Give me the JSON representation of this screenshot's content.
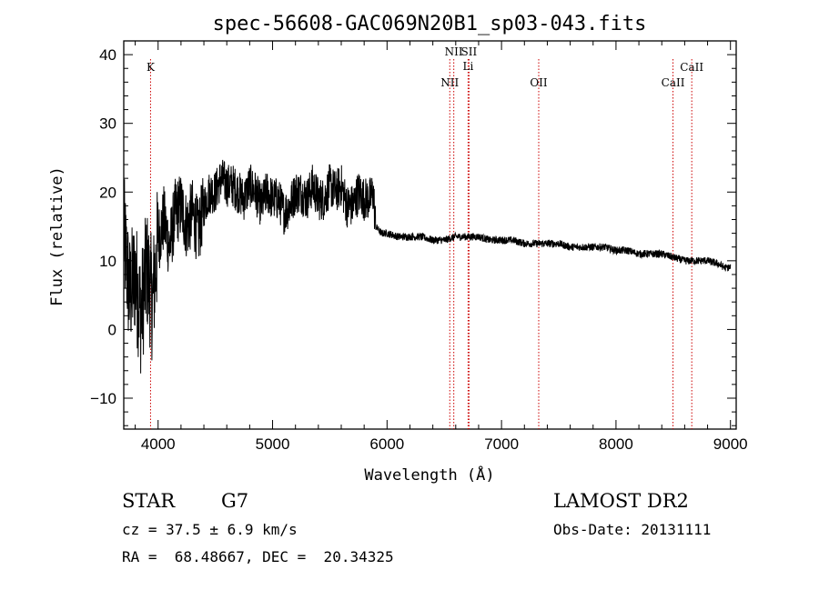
{
  "chart_data": {
    "type": "line",
    "title": "spec-56608-GAC069N20B1_sp03-043.fits",
    "xlabel": "Wavelength (Å)",
    "ylabel": "Flux (relative)",
    "xlim": [
      3700,
      9050
    ],
    "ylim": [
      -14.5,
      42
    ],
    "xticks": [
      4000,
      5000,
      6000,
      7000,
      8000,
      9000
    ],
    "yticks": [
      -10,
      0,
      10,
      20,
      30,
      40
    ],
    "grid": false,
    "line_color": "#000000",
    "marker_color": "#cc0000",
    "spectrum": {
      "x": [
        3700,
        3750,
        3800,
        3850,
        3900,
        3950,
        4000,
        4050,
        4100,
        4150,
        4200,
        4250,
        4300,
        4350,
        4400,
        4450,
        4500,
        4550,
        4600,
        4650,
        4700,
        4750,
        4800,
        4850,
        4900,
        4950,
        5000,
        5050,
        5100,
        5150,
        5200,
        5250,
        5300,
        5350,
        5400,
        5450,
        5500,
        5550,
        5600,
        5650,
        5700,
        5750,
        5800,
        5850,
        5880,
        5900,
        5950,
        6000,
        6100,
        6200,
        6300,
        6400,
        6500,
        6600,
        6700,
        6800,
        6900,
        7000,
        7100,
        7200,
        7300,
        7400,
        7500,
        7600,
        7700,
        7800,
        7900,
        8000,
        8100,
        8200,
        8300,
        8400,
        8500,
        8600,
        8700,
        8800,
        8900,
        8950,
        9000
      ],
      "y": [
        14,
        5,
        8,
        2,
        9,
        4,
        13,
        16,
        12,
        17,
        18,
        15,
        17,
        14,
        18,
        20,
        20,
        22,
        21,
        21,
        20,
        19,
        21,
        20,
        18,
        20,
        19,
        19,
        17,
        18,
        20,
        20,
        19,
        21,
        19,
        19,
        21,
        20,
        21,
        18,
        18,
        20,
        19,
        19,
        20,
        15,
        14,
        14,
        13.5,
        13.5,
        13.5,
        13,
        13,
        13.5,
        13.5,
        13.5,
        13,
        13,
        13,
        12.5,
        12.5,
        12.5,
        12.5,
        12,
        12,
        12,
        12,
        11.5,
        11.5,
        11,
        11,
        11,
        10.5,
        10,
        10,
        10,
        9.5,
        9,
        9
      ]
    },
    "lines": [
      {
        "label": "K",
        "wavelength": 3934
      },
      {
        "label": "NII",
        "wavelength": 6548
      },
      {
        "label": "NII",
        "wavelength": 6583
      },
      {
        "label": "SII",
        "wavelength": 6716
      },
      {
        "label": "Li",
        "wavelength": 6708
      },
      {
        "label": "OII",
        "wavelength": 7325
      },
      {
        "label": "CaII",
        "wavelength": 8498
      },
      {
        "label": "CaII",
        "wavelength": 8662
      }
    ]
  },
  "info": {
    "object_class": "STAR",
    "subclass": "G7",
    "cz": "cz = 37.5 ± 6.9 km/s",
    "coords": "RA =  68.48667, DEC =  20.34325",
    "release": "LAMOST DR2",
    "obs_date": "Obs-Date: 20131111"
  }
}
